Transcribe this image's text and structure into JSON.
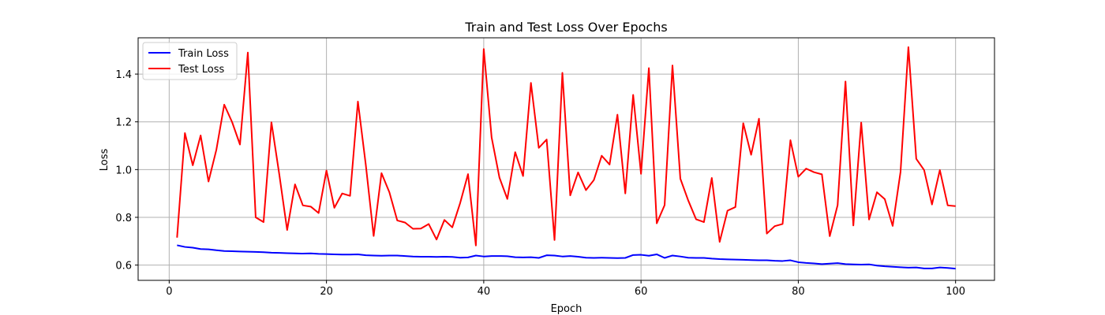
{
  "chart_data": {
    "type": "line",
    "title": "Train and Test Loss Over Epochs",
    "xlabel": "Epoch",
    "ylabel": "Loss",
    "xlim": [
      -3.95,
      104.95
    ],
    "ylim": [
      0.536,
      1.552
    ],
    "x_ticks": [
      "0",
      "20",
      "40",
      "60",
      "80",
      "100"
    ],
    "y_ticks": [
      "0.6",
      "0.8",
      "1.0",
      "1.2",
      "1.4"
    ],
    "grid": true,
    "legend_position": "upper-left",
    "series": [
      {
        "name": "Train Loss",
        "color": "#0000ff",
        "values": [
          0.683,
          0.676,
          0.673,
          0.667,
          0.666,
          0.662,
          0.659,
          0.658,
          0.657,
          0.656,
          0.655,
          0.654,
          0.652,
          0.651,
          0.65,
          0.649,
          0.648,
          0.649,
          0.647,
          0.646,
          0.645,
          0.644,
          0.644,
          0.645,
          0.641,
          0.64,
          0.639,
          0.64,
          0.64,
          0.638,
          0.636,
          0.635,
          0.635,
          0.634,
          0.635,
          0.634,
          0.631,
          0.632,
          0.64,
          0.636,
          0.638,
          0.638,
          0.637,
          0.633,
          0.632,
          0.633,
          0.63,
          0.641,
          0.64,
          0.636,
          0.638,
          0.635,
          0.631,
          0.63,
          0.631,
          0.63,
          0.629,
          0.63,
          0.642,
          0.643,
          0.639,
          0.645,
          0.63,
          0.64,
          0.636,
          0.631,
          0.63,
          0.63,
          0.627,
          0.625,
          0.624,
          0.623,
          0.622,
          0.621,
          0.62,
          0.62,
          0.618,
          0.617,
          0.62,
          0.612,
          0.609,
          0.607,
          0.604,
          0.606,
          0.608,
          0.604,
          0.603,
          0.602,
          0.603,
          0.598,
          0.595,
          0.593,
          0.591,
          0.589,
          0.59,
          0.586,
          0.586,
          0.59,
          0.588,
          0.585
        ]
      },
      {
        "name": "Test Loss",
        "color": "#ff0000",
        "values": [
          0.715,
          1.153,
          1.018,
          1.143,
          0.95,
          1.083,
          1.272,
          1.199,
          1.105,
          1.49,
          0.8,
          0.78,
          1.198,
          0.98,
          0.747,
          0.938,
          0.85,
          0.845,
          0.818,
          0.996,
          0.84,
          0.9,
          0.89,
          1.285,
          1.02,
          0.722,
          0.985,
          0.905,
          0.787,
          0.778,
          0.752,
          0.753,
          0.772,
          0.707,
          0.789,
          0.758,
          0.86,
          0.981,
          0.682,
          1.505,
          1.135,
          0.966,
          0.877,
          1.073,
          0.973,
          1.363,
          1.091,
          1.126,
          0.705,
          1.405,
          0.892,
          0.988,
          0.914,
          0.956,
          1.058,
          1.021,
          1.23,
          0.9,
          1.313,
          0.982,
          1.425,
          0.775,
          0.851,
          1.436,
          0.962,
          0.871,
          0.792,
          0.78,
          0.965,
          0.697,
          0.828,
          0.843,
          1.194,
          1.062,
          1.213,
          0.732,
          0.763,
          0.772,
          1.123,
          0.97,
          1.004,
          0.989,
          0.98,
          0.721,
          0.851,
          1.369,
          0.766,
          1.197,
          0.791,
          0.905,
          0.876,
          0.764,
          0.99,
          1.513,
          1.045,
          0.998,
          0.854,
          0.998,
          0.85,
          0.847
        ]
      }
    ]
  }
}
